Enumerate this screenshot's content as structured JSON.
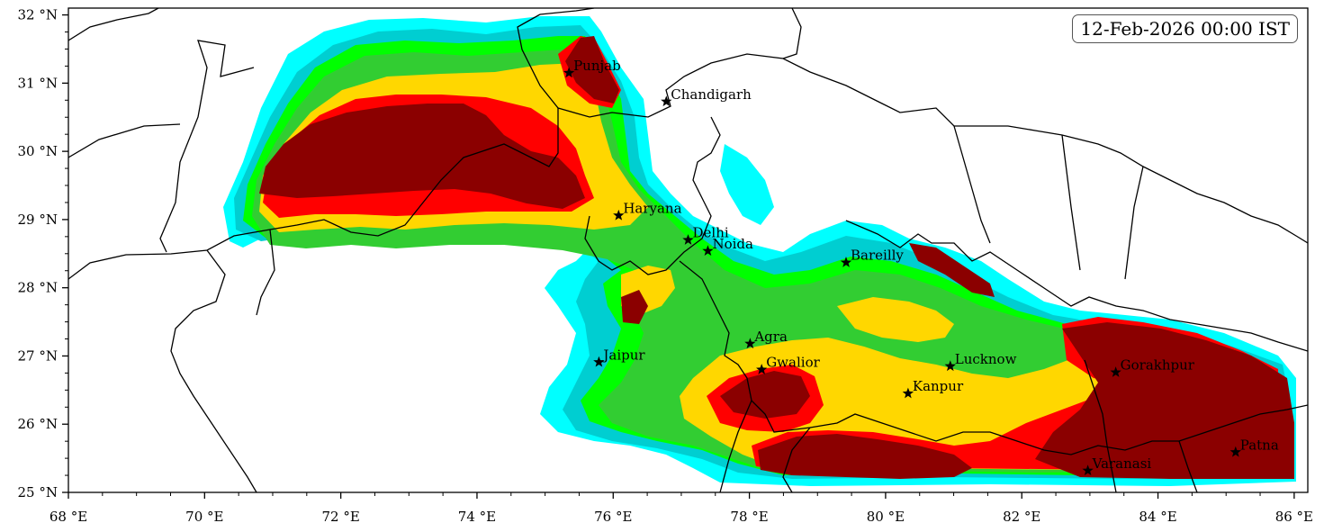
{
  "timestamp": "12-Feb-2026 00:00 IST",
  "axes": {
    "lon_range": [
      68,
      86.2
    ],
    "lat_range": [
      25,
      32.1
    ],
    "x_ticks": [
      {
        "value": 68,
        "label": "68 °E"
      },
      {
        "value": 70,
        "label": "70 °E"
      },
      {
        "value": 72,
        "label": "72 °E"
      },
      {
        "value": 74,
        "label": "74 °E"
      },
      {
        "value": 76,
        "label": "76 °E"
      },
      {
        "value": 78,
        "label": "78 °E"
      },
      {
        "value": 80,
        "label": "80 °E"
      },
      {
        "value": 82,
        "label": "82 °E"
      },
      {
        "value": 84,
        "label": "84 °E"
      },
      {
        "value": 86,
        "label": "86 °E"
      }
    ],
    "y_ticks": [
      {
        "value": 25,
        "label": "25 °N"
      },
      {
        "value": 26,
        "label": "26 °N"
      },
      {
        "value": 27,
        "label": "27 °N"
      },
      {
        "value": 28,
        "label": "28 °N"
      },
      {
        "value": 29,
        "label": "29 °N"
      },
      {
        "value": 30,
        "label": "30 °N"
      },
      {
        "value": 31,
        "label": "31 °N"
      },
      {
        "value": 32,
        "label": "32 °N"
      }
    ]
  },
  "cities": [
    {
      "name": "Punjab",
      "lon": 75.35,
      "lat": 31.15
    },
    {
      "name": "Chandigarh",
      "lon": 76.78,
      "lat": 30.73
    },
    {
      "name": "Haryana",
      "lon": 76.08,
      "lat": 29.06
    },
    {
      "name": "Delhi",
      "lon": 77.1,
      "lat": 28.7
    },
    {
      "name": "Noida",
      "lon": 77.39,
      "lat": 28.54
    },
    {
      "name": "Bareilly",
      "lon": 79.42,
      "lat": 28.37
    },
    {
      "name": "Agra",
      "lon": 78.01,
      "lat": 27.18
    },
    {
      "name": "Jaipur",
      "lon": 75.79,
      "lat": 26.91
    },
    {
      "name": "Gwalior",
      "lon": 78.18,
      "lat": 26.8
    },
    {
      "name": "Lucknow",
      "lon": 80.95,
      "lat": 26.85
    },
    {
      "name": "Kanpur",
      "lon": 80.33,
      "lat": 26.45
    },
    {
      "name": "Gorakhpur",
      "lon": 83.38,
      "lat": 26.76
    },
    {
      "name": "Patna",
      "lon": 85.14,
      "lat": 25.59
    },
    {
      "name": "Varanasi",
      "lon": 82.97,
      "lat": 25.32
    }
  ],
  "fog_colors": [
    "#00ffff",
    "#00ced1",
    "#00ff00",
    "#32cd32",
    "#ffd700",
    "#ff0000",
    "#8b0000"
  ]
}
